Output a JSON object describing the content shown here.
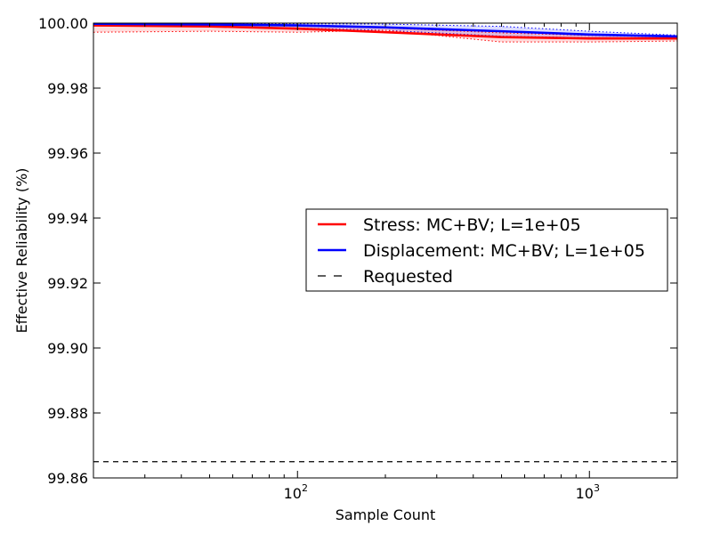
{
  "chart_data": {
    "type": "line",
    "title": "",
    "xlabel": "Sample Count",
    "ylabel": "Effective Reliability (%)",
    "xscale": "log",
    "xlim": [
      20,
      2000
    ],
    "ylim": [
      99.86,
      100.0
    ],
    "yticks": [
      "99.86",
      "99.88",
      "99.90",
      "99.92",
      "99.94",
      "99.96",
      "99.98",
      "100.00"
    ],
    "xticks": [
      {
        "value": 100,
        "base": "10",
        "exp": "2"
      },
      {
        "value": 1000,
        "base": "10",
        "exp": "3"
      }
    ],
    "grid": false,
    "legend_position": "center-right",
    "series": [
      {
        "name": "Stress: MC+BV; L=1e+05",
        "color": "#ff0000",
        "style": "solid",
        "x": [
          20,
          50,
          100,
          200,
          500,
          1000,
          2000
        ],
        "y": [
          99.9993,
          99.999,
          99.9983,
          99.9972,
          99.9957,
          99.9953,
          99.9953
        ],
        "band_upper": [
          99.9998,
          99.9996,
          99.9994,
          99.9985,
          99.997,
          99.9962,
          99.9958
        ],
        "band_lower": [
          99.9972,
          99.9975,
          99.9972,
          99.9978,
          99.9942,
          99.9942,
          99.9945
        ]
      },
      {
        "name": "Displacement: MC+BV; L=1e+05",
        "color": "#0000ff",
        "style": "solid",
        "x": [
          20,
          50,
          100,
          200,
          500,
          1000,
          2000
        ],
        "y": [
          99.9998,
          99.9996,
          99.9993,
          99.9987,
          99.9975,
          99.9965,
          99.9959
        ],
        "band_upper": [
          100.0,
          99.9999,
          99.9998,
          99.9997,
          99.999,
          99.9975,
          99.9963
        ],
        "band_lower": [
          99.9992,
          99.999,
          99.9985,
          99.9978,
          99.996,
          99.9955,
          99.9955
        ]
      },
      {
        "name": "Requested",
        "color": "#000000",
        "style": "dashed",
        "x": [
          20,
          2000
        ],
        "y": [
          99.865,
          99.865
        ]
      }
    ]
  }
}
